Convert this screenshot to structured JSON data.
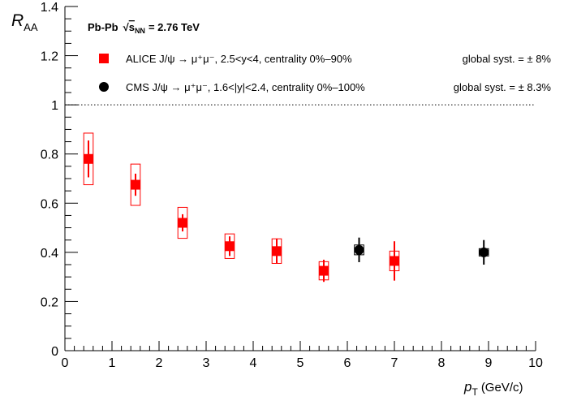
{
  "chart_data": {
    "type": "errorbar",
    "title_parts": [
      "Pb-Pb",
      "√",
      "s",
      "NN",
      "= 2.76 TeV"
    ],
    "y_label": {
      "main": "R",
      "sub": "AA"
    },
    "x_label": {
      "main": "p",
      "sub": "T",
      "unit": "(GeV/c)"
    },
    "xlim": [
      0,
      10
    ],
    "ylim": [
      0,
      1.4
    ],
    "xticks": [
      0,
      1,
      2,
      3,
      4,
      5,
      6,
      7,
      8,
      9,
      10
    ],
    "yticks": [
      0,
      0.2,
      0.4,
      0.6,
      0.8,
      1,
      1.2,
      1.4
    ],
    "reference_line": 1,
    "series": [
      {
        "name": "ALICE J/ψ → μ⁺μ⁻, 2.5<y<4, centrality 0%–90%",
        "global_syst": "global syst. = ± 8%",
        "color": "#ff0000",
        "marker": "square",
        "x": [
          0.5,
          1.5,
          2.5,
          3.5,
          4.5,
          5.5,
          7.0
        ],
        "values": [
          0.78,
          0.675,
          0.52,
          0.425,
          0.405,
          0.325,
          0.365
        ],
        "errors": [
          0.075,
          0.045,
          0.035,
          0.04,
          0.05,
          0.045,
          0.08
        ],
        "syst": [
          0.105,
          0.084,
          0.063,
          0.05,
          0.05,
          0.037,
          0.04
        ]
      },
      {
        "name": "CMS  J/ψ → μ⁺μ⁻, 1.6<|y|<2.4, centrality 0%–100%",
        "global_syst": "global syst. = ± 8.3%",
        "color": "#000000",
        "marker": "circle",
        "x": [
          6.25,
          8.9
        ],
        "values": [
          0.41,
          0.4
        ],
        "errors": [
          0.05,
          0.05
        ],
        "syst": [
          0.02,
          0.015
        ]
      }
    ]
  }
}
